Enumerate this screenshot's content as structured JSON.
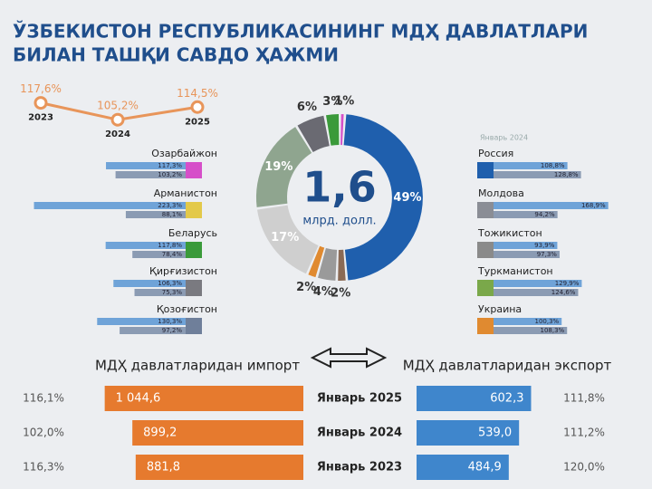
{
  "title": [
    "ЎЗБЕКИСТОН РЕСПУБЛИКАСИНИНГ МДҲ ДАВЛАТЛАРИ",
    "БИЛАН ТАШҚИ САВДО ҲАЖМИ"
  ],
  "chart_data": [
    {
      "type": "line",
      "x": [
        "2023",
        "2024",
        "2025"
      ],
      "values": [
        117.6,
        105.2,
        114.5
      ],
      "value_labels": [
        "117,6%",
        "105,2%",
        "114,5%"
      ],
      "color": "#e8955a",
      "ylim": [
        100,
        120
      ]
    },
    {
      "type": "pie",
      "center_value": "1,6",
      "center_unit": "млрд. долл.",
      "values": [
        49,
        2,
        4,
        2,
        17,
        19,
        6,
        3,
        1
      ],
      "value_labels": [
        "49%",
        "2%",
        "4%",
        "2%",
        "17%",
        "19%",
        "6%",
        "3%",
        "1%"
      ],
      "colors": [
        "#1f5fad",
        "#8a6a55",
        "#9a9a9a",
        "#e08a30",
        "#cfcfcf",
        "#8fa58f",
        "#6a6a72",
        "#3a9a3a",
        "#d64fc9"
      ]
    },
    {
      "type": "country-bars",
      "side": "left",
      "categories": [
        "Озарбайжон",
        "Арманистон",
        "Беларусь",
        "Қирғизистон",
        "Қозоғистон"
      ],
      "colors": [
        "#d64fc9",
        "#e3c94a",
        "#3a9a3a",
        "#7a7a80",
        "#6f7f9a"
      ],
      "series": [
        {
          "color": "#6fa3d8",
          "values": [
            117.3,
            223.3,
            117.8,
            106.3,
            130.3
          ],
          "value_labels": [
            "117,3%",
            "223,3%",
            "117,8%",
            "106,3%",
            "130,3%"
          ]
        },
        {
          "color": "#8b9bb3",
          "values": [
            103.2,
            88.1,
            78.4,
            75.3,
            97.2
          ],
          "value_labels": [
            "103,2%",
            "88,1%",
            "78,4%",
            "75,3%",
            "97,2%"
          ]
        }
      ]
    },
    {
      "type": "country-bars",
      "side": "right",
      "legend_text": "Январь 2024",
      "categories": [
        "Россия",
        "Молдова",
        "Тожикистон",
        "Туркманистон",
        "Украина"
      ],
      "colors": [
        "#1f5fad",
        "#8a8d95",
        "#8a8a8a",
        "#7aa84a",
        "#e08a30"
      ],
      "series": [
        {
          "color": "#6fa3d8",
          "values": [
            108.8,
            168.9,
            93.9,
            129.9,
            100.3
          ],
          "value_labels": [
            "108,8%",
            "168,9%",
            "93,9%",
            "129,9%",
            "100,3%"
          ]
        },
        {
          "color": "#8b9bb3",
          "values": [
            128.8,
            94.2,
            97.3,
            124.6,
            108.3
          ],
          "value_labels": [
            "128,8%",
            "94,2%",
            "97,3%",
            "124,6%",
            "108,3%"
          ]
        }
      ]
    },
    {
      "type": "mirror-bar",
      "categories": [
        "Январь 2025",
        "Январь 2024",
        "Январь 2023"
      ],
      "series": [
        {
          "name": "МДҲ давлатларидан импорт",
          "color": "#e67a2e",
          "values": [
            1044.6,
            899.2,
            881.8
          ],
          "value_labels": [
            "1 044,6",
            "899,2",
            "881,8"
          ],
          "growth_labels": [
            "116,1%",
            "102,0%",
            "116,3%"
          ]
        },
        {
          "name": "МДҲ давлатларидан экспорт",
          "color": "#3f86cc",
          "values": [
            602.3,
            539.0,
            484.9
          ],
          "value_labels": [
            "602,3",
            "539,0",
            "484,9"
          ],
          "growth_labels": [
            "111,8%",
            "111,2%",
            "120,0%"
          ]
        }
      ]
    }
  ]
}
